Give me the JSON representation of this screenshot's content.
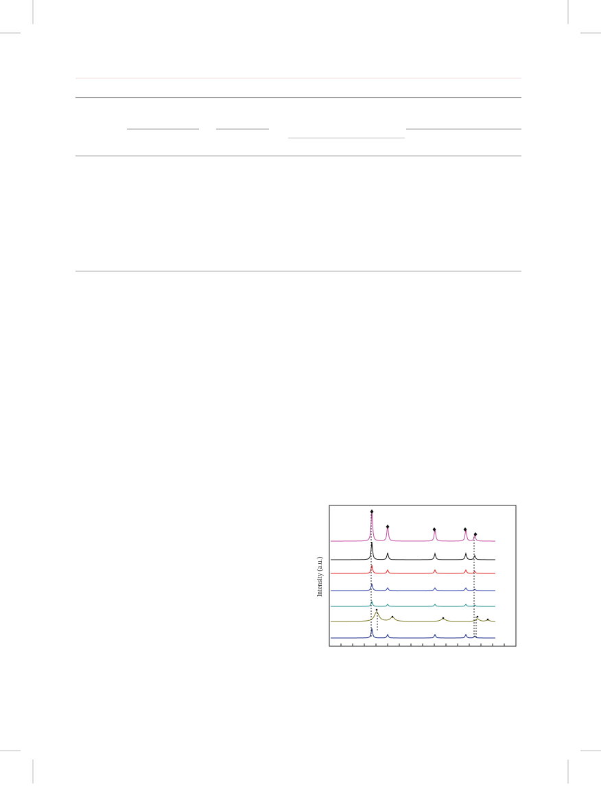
{
  "figure": {
    "y_axis_label": "Intensity (a.u.)"
  }
}
